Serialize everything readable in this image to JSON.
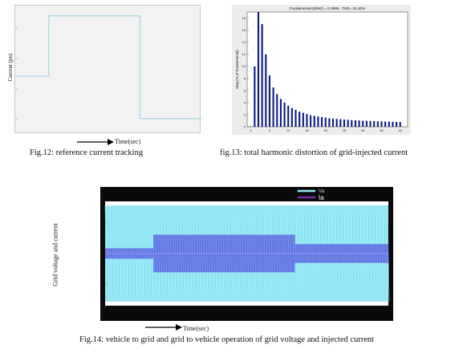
{
  "chart_data": [
    {
      "type": "line",
      "title": "",
      "xlabel": "Time(sec)",
      "ylabel": "Current (pu)",
      "grid": false,
      "series": [
        {
          "x": [
            0,
            0.18,
            0.18,
            0.67,
            0.67,
            1.0
          ],
          "y": [
            0.45,
            0.45,
            0.92,
            0.92,
            0.12,
            0.12
          ]
        }
      ],
      "caption": "Fig.12: reference current tracking"
    },
    {
      "type": "bar",
      "title": "Fundamental (60Hz) = 0.1999 , THD= 24.42%",
      "xlabel": "Harmonic order",
      "ylabel": "Mag (% of Fundamental)",
      "ylim": [
        0,
        19
      ],
      "xticks": [
        0,
        5,
        10,
        15,
        20,
        25,
        30,
        35,
        40
      ],
      "yticks": [
        0,
        2,
        4,
        6,
        8,
        10,
        12,
        14,
        16,
        18
      ],
      "categories": [
        1,
        2,
        3,
        4,
        5,
        6,
        7,
        8,
        9,
        10,
        11,
        12,
        13,
        14,
        15,
        16,
        17,
        18,
        19,
        20,
        21,
        22,
        23,
        24,
        25,
        26,
        27,
        28,
        29,
        30,
        31,
        32,
        33,
        34,
        35,
        36,
        37,
        38,
        39,
        40
      ],
      "values": [
        10,
        19,
        17,
        12,
        8.5,
        6.5,
        5.4,
        4.6,
        4.0,
        3.5,
        3.1,
        2.8,
        2.5,
        2.3,
        2.1,
        1.9,
        1.8,
        1.7,
        1.6,
        1.5,
        1.4,
        1.35,
        1.3,
        1.25,
        1.2,
        1.15,
        1.1,
        1.07,
        1.04,
        1.0,
        0.98,
        0.95,
        0.93,
        0.9,
        0.88,
        0.86,
        0.84,
        0.82,
        0.8,
        0.78
      ],
      "caption": "fig.13: total harmonic distortion of grid-injected current"
    },
    {
      "type": "area",
      "title": "",
      "xlabel": "Time(sec)",
      "ylabel": "Grid voltage and current",
      "legend": "top-right",
      "series": [
        {
          "name": "Va",
          "color": "#99e8f5",
          "x": [
            0,
            1
          ],
          "amplitude": [
            0.92,
            0.92
          ]
        },
        {
          "name": "Ia",
          "color": "#5a63e0",
          "x": [
            0,
            0.17,
            0.17,
            0.67,
            0.67,
            1
          ],
          "amplitude": [
            0.1,
            0.1,
            0.36,
            0.36,
            0.18,
            0.18
          ]
        }
      ],
      "caption": "Fig.14: vehicle to grid and grid to vehicle operation of grid voltage and injected current"
    }
  ],
  "colors": {
    "fig12_line": "#9fd0e0",
    "fig13_bar": "#0b1a82",
    "fig14_frame": "#0a0a0a"
  }
}
